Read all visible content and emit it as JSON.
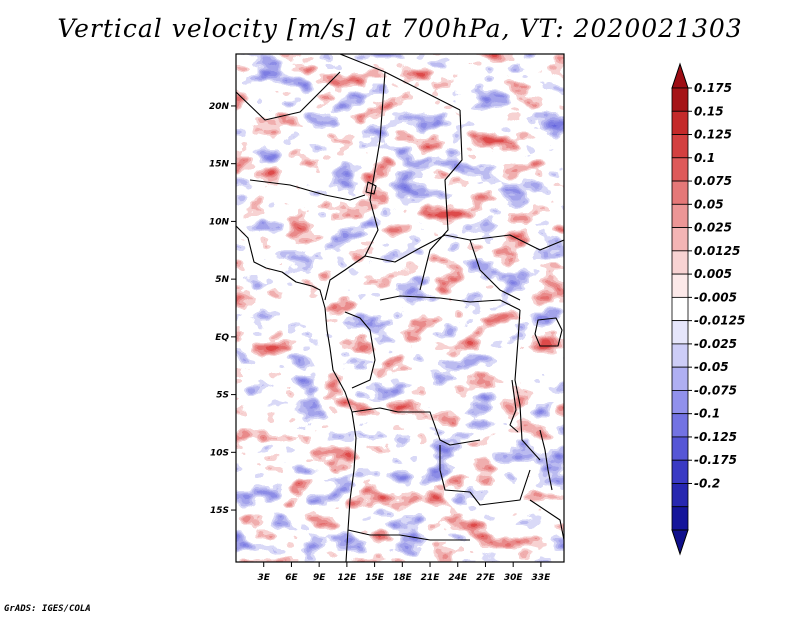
{
  "title": "Vertical velocity [m/s] at 700hPa, VT: 2020021303",
  "credit": "GrADS: IGES/COLA",
  "map": {
    "lon_range": [
      0,
      35.5
    ],
    "lat_range": [
      -19.5,
      24.5
    ],
    "x_ticks": [
      {
        "value": 3,
        "label": "3E"
      },
      {
        "value": 6,
        "label": "6E"
      },
      {
        "value": 9,
        "label": "9E"
      },
      {
        "value": 12,
        "label": "12E"
      },
      {
        "value": 15,
        "label": "15E"
      },
      {
        "value": 18,
        "label": "18E"
      },
      {
        "value": 21,
        "label": "21E"
      },
      {
        "value": 24,
        "label": "24E"
      },
      {
        "value": 27,
        "label": "27E"
      },
      {
        "value": 30,
        "label": "30E"
      },
      {
        "value": 33,
        "label": "33E"
      }
    ],
    "y_ticks": [
      {
        "value": 20,
        "label": "20N"
      },
      {
        "value": 15,
        "label": "15N"
      },
      {
        "value": 10,
        "label": "10N"
      },
      {
        "value": 5,
        "label": "5N"
      },
      {
        "value": 0,
        "label": "EQ"
      },
      {
        "value": -5,
        "label": "5S"
      },
      {
        "value": -10,
        "label": "10S"
      },
      {
        "value": -15,
        "label": "15S"
      }
    ]
  },
  "colorbar": {
    "labels": [
      "0.175",
      "0.15",
      "0.125",
      "0.1",
      "0.075",
      "0.05",
      "0.025",
      "0.0125",
      "0.005",
      "-0.005",
      "-0.0125",
      "-0.025",
      "-0.05",
      "-0.075",
      "-0.1",
      "-0.125",
      "-0.175",
      "-0.2"
    ],
    "colors": [
      "#a51417",
      "#c42a2a",
      "#d34040",
      "#de5a5a",
      "#e57878",
      "#ec9696",
      "#f3b5b5",
      "#f8d3d3",
      "#fce9e9",
      "#ffffff",
      "#e6e6fb",
      "#cdcdf7",
      "#afaff2",
      "#9191ec",
      "#7373e3",
      "#5656d6",
      "#3a3ac4",
      "#2727b0",
      "#15159a"
    ],
    "top_arrow_color": "#9d0d14",
    "bottom_arrow_color": "#0f0f8c"
  }
}
